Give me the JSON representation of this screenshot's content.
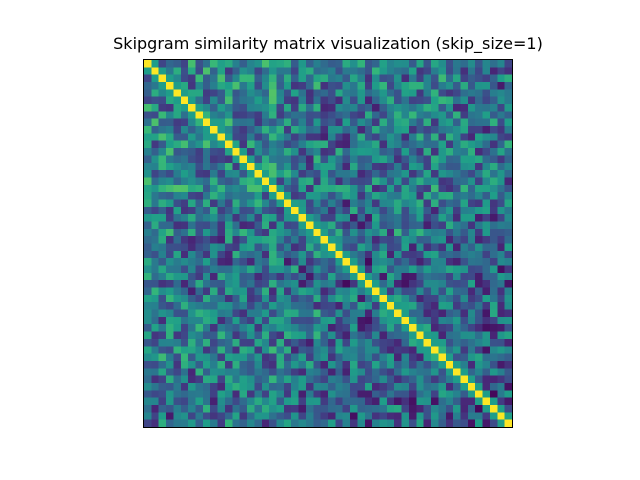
{
  "chart_data": {
    "type": "heatmap",
    "title": "Skipgram similarity matrix visualization (skip_size=1)",
    "rows": 50,
    "cols": 50,
    "axes_visible": false,
    "grid": false,
    "legend": "none",
    "colormap": "viridis",
    "value_range": [
      0,
      1
    ],
    "diagonal_value": 1.0,
    "colormap_stops": [
      "#440154",
      "#482878",
      "#3e4989",
      "#31688e",
      "#26828e",
      "#1f9e89",
      "#35b779",
      "#6ece58",
      "#b5de2b",
      "#fde725"
    ],
    "row_means": [
      0.5,
      0.45,
      0.5,
      0.48,
      0.42,
      0.4,
      0.38,
      0.4,
      0.45,
      0.42,
      0.38,
      0.4,
      0.45,
      0.4,
      0.48,
      0.4,
      0.35,
      0.45,
      0.35,
      0.38,
      0.4,
      0.32,
      0.35,
      0.4,
      0.28,
      0.25,
      0.3,
      0.3,
      0.38,
      0.4,
      0.35,
      0.3,
      0.32,
      0.3,
      0.3,
      0.35,
      0.4,
      0.35,
      0.3,
      0.38,
      0.4,
      0.3,
      0.3,
      0.32,
      0.35,
      0.3,
      0.25,
      0.3,
      0.28,
      0.32
    ],
    "col_means": [
      0.45,
      0.45,
      0.42,
      0.4,
      0.45,
      0.45,
      0.42,
      0.48,
      0.45,
      0.4,
      0.42,
      0.45,
      0.4,
      0.35,
      0.38,
      0.4,
      0.48,
      0.48,
      0.45,
      0.4,
      0.38,
      0.4,
      0.35,
      0.45,
      0.32,
      0.4,
      0.3,
      0.25,
      0.3,
      0.2,
      0.22,
      0.35,
      0.4,
      0.38,
      0.45,
      0.32,
      0.3,
      0.38,
      0.4,
      0.35,
      0.32,
      0.4,
      0.3,
      0.28,
      0.25,
      0.25,
      0.3,
      0.28,
      0.22,
      0.35
    ]
  }
}
